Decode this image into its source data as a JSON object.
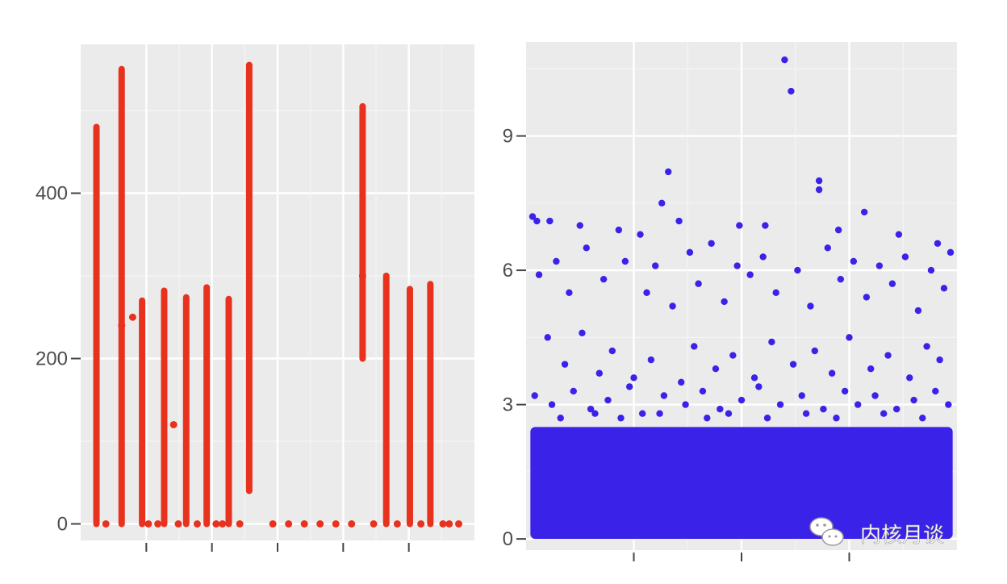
{
  "chart_data": [
    {
      "type": "scatter",
      "color": "#e8321e",
      "x_tick_count": 5,
      "y_ticks": [
        0,
        200,
        400
      ],
      "ylim": [
        -20,
        580
      ],
      "segments": [
        {
          "x": 1.0,
          "ymin": 0,
          "ymax": 480
        },
        {
          "x": 2.6,
          "ymin": 0,
          "ymax": 550
        },
        {
          "x": 3.9,
          "ymin": 0,
          "ymax": 270
        },
        {
          "x": 5.3,
          "ymin": 0,
          "ymax": 282
        },
        {
          "x": 6.7,
          "ymin": 0,
          "ymax": 274
        },
        {
          "x": 8.0,
          "ymin": 0,
          "ymax": 286
        },
        {
          "x": 9.4,
          "ymin": 0,
          "ymax": 272
        },
        {
          "x": 10.7,
          "ymin": 40,
          "ymax": 555
        },
        {
          "x": 17.9,
          "ymin": 200,
          "ymax": 505
        },
        {
          "x": 19.4,
          "ymin": 0,
          "ymax": 300
        },
        {
          "x": 20.9,
          "ymin": 0,
          "ymax": 284
        },
        {
          "x": 22.2,
          "ymin": 0,
          "ymax": 290
        }
      ],
      "points": [
        {
          "x": 1.6,
          "y": 0
        },
        {
          "x": 4.3,
          "y": 0
        },
        {
          "x": 4.9,
          "y": 0
        },
        {
          "x": 5.9,
          "y": 120
        },
        {
          "x": 6.2,
          "y": 0
        },
        {
          "x": 7.4,
          "y": 0
        },
        {
          "x": 8.6,
          "y": 0
        },
        {
          "x": 9.0,
          "y": 0
        },
        {
          "x": 10.1,
          "y": 0
        },
        {
          "x": 12.2,
          "y": 0
        },
        {
          "x": 13.2,
          "y": 0
        },
        {
          "x": 14.2,
          "y": 0
        },
        {
          "x": 15.2,
          "y": 0
        },
        {
          "x": 16.2,
          "y": 0
        },
        {
          "x": 17.2,
          "y": 0
        },
        {
          "x": 18.6,
          "y": 0
        },
        {
          "x": 20.1,
          "y": 0
        },
        {
          "x": 21.6,
          "y": 0
        },
        {
          "x": 23.0,
          "y": 0
        },
        {
          "x": 23.4,
          "y": 0
        },
        {
          "x": 24.0,
          "y": 0
        },
        {
          "x": 2.6,
          "y": 240
        },
        {
          "x": 3.3,
          "y": 250
        },
        {
          "x": 17.9,
          "y": 300
        }
      ],
      "xlim": [
        0,
        25
      ]
    },
    {
      "type": "scatter",
      "color": "#3b22e8",
      "x_tick_count": 3,
      "y_ticks": [
        0,
        3,
        6,
        9
      ],
      "ylim": [
        -0.25,
        11.1
      ],
      "xlim": [
        0,
        100
      ],
      "dense_band": {
        "x_start": 1,
        "x_end": 99,
        "ymin": 0,
        "ymax": 2.5
      },
      "outliers": [
        [
          1.5,
          7.2
        ],
        [
          2.5,
          7.1
        ],
        [
          5.5,
          7.1
        ],
        [
          12.5,
          7.0
        ],
        [
          21.5,
          6.9
        ],
        [
          26.5,
          6.8
        ],
        [
          35.5,
          7.1
        ],
        [
          49.5,
          7.0
        ],
        [
          55.5,
          7.0
        ],
        [
          72.5,
          6.9
        ],
        [
          78.5,
          7.3
        ],
        [
          86.5,
          6.8
        ],
        [
          95.5,
          6.6
        ],
        [
          98.5,
          6.4
        ],
        [
          33.0,
          8.2
        ],
        [
          31.5,
          7.5
        ],
        [
          60.0,
          10.7
        ],
        [
          61.5,
          10.0
        ],
        [
          68.0,
          8.0
        ],
        [
          68.0,
          7.8
        ],
        [
          3.0,
          5.9
        ],
        [
          7.0,
          6.2
        ],
        [
          10.0,
          5.5
        ],
        [
          14.0,
          6.5
        ],
        [
          18.0,
          5.8
        ],
        [
          23.0,
          6.2
        ],
        [
          28.0,
          5.5
        ],
        [
          30.0,
          6.1
        ],
        [
          34.0,
          5.2
        ],
        [
          38.0,
          6.4
        ],
        [
          40.0,
          5.7
        ],
        [
          43.0,
          6.6
        ],
        [
          46.0,
          5.3
        ],
        [
          49.0,
          6.1
        ],
        [
          52.0,
          5.9
        ],
        [
          55.0,
          6.3
        ],
        [
          58.0,
          5.5
        ],
        [
          63.0,
          6.0
        ],
        [
          66.0,
          5.2
        ],
        [
          70.0,
          6.5
        ],
        [
          73.0,
          5.8
        ],
        [
          76.0,
          6.2
        ],
        [
          79.0,
          5.4
        ],
        [
          82.0,
          6.1
        ],
        [
          85.0,
          5.7
        ],
        [
          88.0,
          6.3
        ],
        [
          91.0,
          5.1
        ],
        [
          94.0,
          6.0
        ],
        [
          97.0,
          5.6
        ],
        [
          5.0,
          4.5
        ],
        [
          9.0,
          3.9
        ],
        [
          13.0,
          4.6
        ],
        [
          17.0,
          3.7
        ],
        [
          20.0,
          4.2
        ],
        [
          25.0,
          3.6
        ],
        [
          29.0,
          4.0
        ],
        [
          36.0,
          3.5
        ],
        [
          39.0,
          4.3
        ],
        [
          44.0,
          3.8
        ],
        [
          48.0,
          4.1
        ],
        [
          53.0,
          3.6
        ],
        [
          57.0,
          4.4
        ],
        [
          62.0,
          3.9
        ],
        [
          67.0,
          4.2
        ],
        [
          71.0,
          3.7
        ],
        [
          75.0,
          4.5
        ],
        [
          80.0,
          3.8
        ],
        [
          84.0,
          4.1
        ],
        [
          89.0,
          3.6
        ],
        [
          93.0,
          4.3
        ],
        [
          96.0,
          4.0
        ],
        [
          2.0,
          3.2
        ],
        [
          6.0,
          3.0
        ],
        [
          11.0,
          3.3
        ],
        [
          15.0,
          2.9
        ],
        [
          19.0,
          3.1
        ],
        [
          24.0,
          3.4
        ],
        [
          27.0,
          2.8
        ],
        [
          32.0,
          3.2
        ],
        [
          37.0,
          3.0
        ],
        [
          41.0,
          3.3
        ],
        [
          45.0,
          2.9
        ],
        [
          50.0,
          3.1
        ],
        [
          54.0,
          3.4
        ],
        [
          59.0,
          3.0
        ],
        [
          64.0,
          3.2
        ],
        [
          69.0,
          2.9
        ],
        [
          74.0,
          3.3
        ],
        [
          77.0,
          3.0
        ],
        [
          81.0,
          3.2
        ],
        [
          86.0,
          2.9
        ],
        [
          90.0,
          3.1
        ],
        [
          95.0,
          3.3
        ],
        [
          98.0,
          3.0
        ],
        [
          8.0,
          2.7
        ],
        [
          16.0,
          2.8
        ],
        [
          22.0,
          2.7
        ],
        [
          31.0,
          2.8
        ],
        [
          42.0,
          2.7
        ],
        [
          47.0,
          2.8
        ],
        [
          56.0,
          2.7
        ],
        [
          65.0,
          2.8
        ],
        [
          72.0,
          2.7
        ],
        [
          83.0,
          2.8
        ],
        [
          92.0,
          2.7
        ]
      ]
    }
  ],
  "watermark": {
    "text": "内核月谈",
    "icon": "chat-bubbles-icon"
  }
}
